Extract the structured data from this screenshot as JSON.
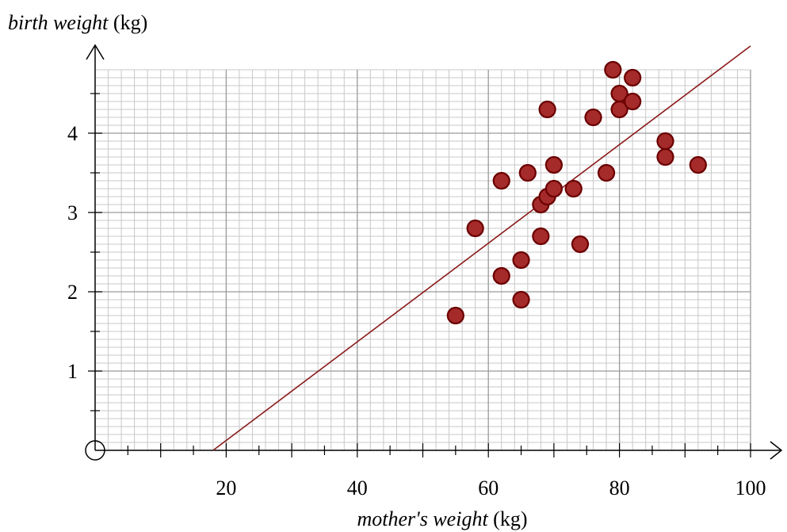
{
  "chart_data": {
    "type": "scatter",
    "title": "",
    "ylabel": {
      "italic": "birth weight",
      "unit": "(kg)"
    },
    "xlabel": {
      "italic": "mother's weight",
      "unit": "(kg)"
    },
    "xlim": [
      0,
      100
    ],
    "ylim": [
      0,
      4.8
    ],
    "x_ticks": [
      20,
      40,
      60,
      80,
      100
    ],
    "y_ticks": [
      1,
      2,
      3,
      4
    ],
    "x_minor_step": 2,
    "y_minor_step": 0.1,
    "x_major_step": 20,
    "y_major_step": 1,
    "grid": true,
    "colors": {
      "point": "#a52a2a",
      "point_edge": "#6b0000",
      "line": "#8b1a1a",
      "grid": "#c8c8c8"
    },
    "points": [
      {
        "x": 55,
        "y": 1.7
      },
      {
        "x": 58,
        "y": 2.8
      },
      {
        "x": 62,
        "y": 3.4
      },
      {
        "x": 62,
        "y": 2.2
      },
      {
        "x": 65,
        "y": 2.4
      },
      {
        "x": 65,
        "y": 1.9
      },
      {
        "x": 66,
        "y": 3.5
      },
      {
        "x": 68,
        "y": 3.1
      },
      {
        "x": 68,
        "y": 2.7
      },
      {
        "x": 69,
        "y": 3.2
      },
      {
        "x": 69,
        "y": 4.3
      },
      {
        "x": 70,
        "y": 3.3
      },
      {
        "x": 70,
        "y": 3.6
      },
      {
        "x": 73,
        "y": 3.3
      },
      {
        "x": 74,
        "y": 2.6
      },
      {
        "x": 76,
        "y": 4.2
      },
      {
        "x": 78,
        "y": 3.5
      },
      {
        "x": 79,
        "y": 4.8
      },
      {
        "x": 80,
        "y": 4.5
      },
      {
        "x": 80,
        "y": 4.3
      },
      {
        "x": 82,
        "y": 4.7
      },
      {
        "x": 82,
        "y": 4.4
      },
      {
        "x": 87,
        "y": 3.9
      },
      {
        "x": 87,
        "y": 3.7
      },
      {
        "x": 92,
        "y": 3.6
      }
    ],
    "regression_line": {
      "x1": 18,
      "y1": 0,
      "x2": 100,
      "y2": 5.1
    }
  }
}
